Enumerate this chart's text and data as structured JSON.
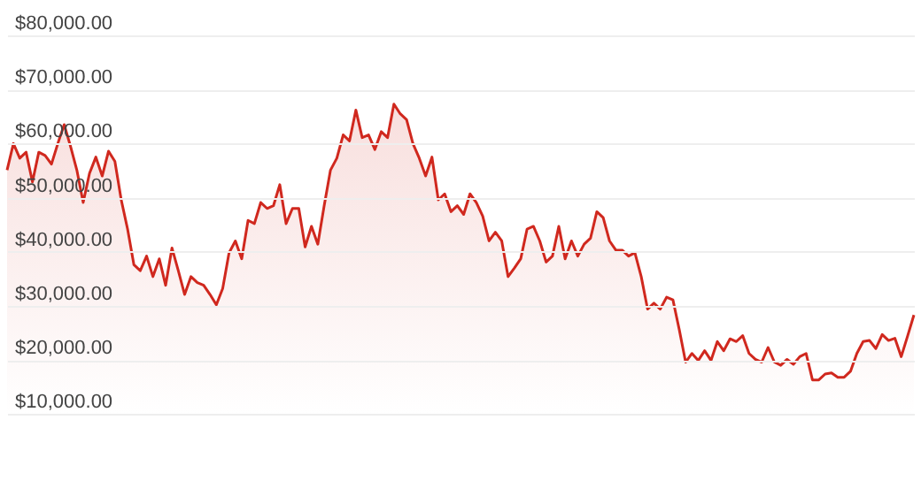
{
  "chart_data": {
    "type": "area",
    "categories": [
      null,
      null,
      null,
      null,
      null,
      null,
      null,
      null,
      null,
      null,
      null,
      null,
      null,
      null,
      null,
      null,
      null,
      null,
      null,
      null,
      null,
      null,
      null,
      null,
      null,
      null,
      null,
      null,
      null,
      null,
      null,
      null,
      null,
      null,
      null,
      null,
      null,
      null,
      null,
      null,
      null,
      null,
      null,
      null,
      null,
      null,
      null,
      null,
      null,
      null,
      null,
      null,
      null,
      null,
      null,
      null,
      null,
      null,
      null,
      null,
      null,
      null,
      null,
      null,
      null,
      null,
      null,
      null,
      null,
      null,
      null,
      null,
      null,
      null,
      null,
      null,
      null,
      null,
      null,
      null,
      null,
      null,
      null,
      null,
      null,
      null,
      null,
      null,
      null,
      null,
      null,
      null,
      null,
      null,
      null,
      null,
      null,
      null,
      null,
      null,
      null,
      null,
      null,
      null,
      null,
      null,
      null,
      null,
      null,
      null,
      null,
      null,
      null,
      null,
      null,
      null,
      null,
      null,
      null,
      null,
      null,
      null,
      null,
      null,
      null,
      null,
      null,
      null,
      null,
      null,
      null,
      null,
      null,
      null,
      null,
      null,
      null,
      null,
      null,
      null,
      null,
      null,
      null,
      null
    ],
    "series": [
      {
        "color": "#d0281e",
        "values": [
          55100,
          60000,
          57300,
          58400,
          52900,
          58400,
          57800,
          56200,
          60000,
          63500,
          59500,
          55100,
          49100,
          54500,
          57500,
          54000,
          58600,
          56700,
          49600,
          44200,
          37600,
          36500,
          39200,
          35400,
          38700,
          33800,
          40700,
          36500,
          32100,
          35400,
          34300,
          33800,
          32100,
          30200,
          33200,
          39800,
          42000,
          38700,
          45800,
          45200,
          49100,
          48000,
          48500,
          52400,
          45200,
          48000,
          48000,
          40900,
          44700,
          41400,
          48500,
          55100,
          57300,
          61600,
          60500,
          66200,
          61100,
          61600,
          58900,
          62200,
          61100,
          67300,
          65500,
          64400,
          60000,
          57300,
          54000,
          57500,
          49600,
          50700,
          47400,
          48500,
          46900,
          50700,
          49100,
          46600,
          42000,
          43600,
          42000,
          35400,
          37000,
          38700,
          44200,
          44700,
          42000,
          38100,
          39200,
          44700,
          38700,
          42000,
          39200,
          41400,
          42500,
          47400,
          46300,
          42000,
          40300,
          40300,
          39200,
          39800,
          35400,
          29400,
          30500,
          29400,
          31600,
          31100,
          25600,
          19600,
          21200,
          19900,
          21700,
          19900,
          23400,
          21700,
          23900,
          23400,
          24500,
          21200,
          20100,
          19600,
          22300,
          19600,
          19000,
          20100,
          19200,
          20600,
          21200,
          16300,
          16300,
          17400,
          17600,
          16800,
          16800,
          17900,
          21200,
          23400,
          23600,
          22100,
          24700,
          23600,
          24000,
          20600,
          24400,
          28300
        ]
      }
    ],
    "ylim": [
      -1400,
      80000
    ],
    "yticks": [
      {
        "value": 10000,
        "label": "$10,000.00"
      },
      {
        "value": 20000,
        "label": "$20,000.00"
      },
      {
        "value": 30000,
        "label": "$30,000.00"
      },
      {
        "value": 40000,
        "label": "$40,000.00"
      },
      {
        "value": 50000,
        "label": "$50,000.00"
      },
      {
        "value": 60000,
        "label": "$60,000.00"
      },
      {
        "value": 70000,
        "label": "$70,000.00"
      },
      {
        "value": 80000,
        "label": "$80,000.00"
      }
    ],
    "tick_labels": "y",
    "grid": "y"
  }
}
